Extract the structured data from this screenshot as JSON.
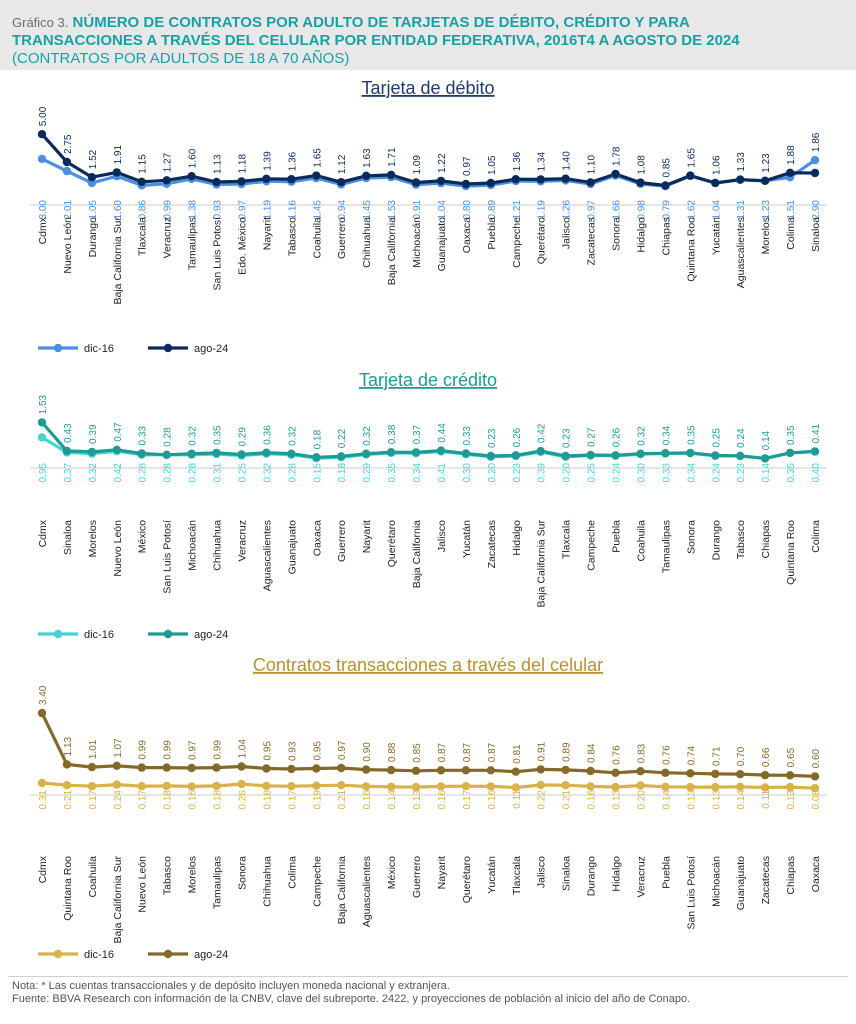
{
  "header": {
    "label": "Gráfico 3.",
    "title_line1": "NÚMERO DE CONTRATOS POR ADULTO DE TARJETAS DE DÉBITO, CRÉDITO Y PARA",
    "title_line2": "TRANSACCIONES A TRAVÉS DEL CELULAR POR ENTIDAD FEDERATIVA, 2016T4 A AGOSTO DE 2024",
    "subtitle": "(CONTRATOS POR ADULTOS DE 18 A 70 AÑOS)"
  },
  "colors": {
    "debito_dic16": "#4a8fe0",
    "debito_ago24": "#0b2a5c",
    "credito_dic16": "#45d4cf",
    "credito_ago24": "#1f9a94",
    "celular_dic16": "#d8b24a",
    "celular_ago24": "#85692a",
    "debito_title": "#1f3a6e",
    "credito_title": "#1f9a94",
    "celular_title": "#b8912f"
  },
  "chart_data": [
    {
      "type": "line",
      "title": "Tarjeta de débito",
      "categories": [
        "Cdmx",
        "Nuevo León",
        "Durango",
        "Baja California Sur",
        "Tlaxcala",
        "Veracruz",
        "Tamaulipas",
        "San Luis Potosí",
        "Edo. México",
        "Nayarit",
        "Tabasco",
        "Coahuila",
        "Guerrero",
        "Chihuahua",
        "Baja California",
        "Michoacán",
        "Guanajuato",
        "Oaxaca",
        "Puebla",
        "Campeche",
        "Querétaro",
        "Jalisco",
        "Zacatecas",
        "Sonora",
        "Hidalgo",
        "Chiapas",
        "Quintana Roo",
        "Yucatán",
        "Aguascalientes",
        "Morelos",
        "Colima",
        "Sinaloa"
      ],
      "series": [
        {
          "name": "dic-16",
          "values": [
            3.0,
            2.01,
            1.05,
            1.6,
            0.86,
            0.99,
            1.38,
            0.93,
            0.97,
            1.19,
            1.16,
            1.45,
            0.94,
            1.45,
            1.53,
            0.91,
            1.04,
            0.8,
            0.89,
            1.21,
            1.19,
            1.26,
            0.97,
            1.66,
            0.98,
            0.79,
            1.62,
            1.04,
            1.31,
            1.23,
            1.51,
            2.9
          ]
        },
        {
          "name": "ago-24",
          "values": [
            5.0,
            2.75,
            1.52,
            1.91,
            1.15,
            1.27,
            1.6,
            1.13,
            1.18,
            1.39,
            1.36,
            1.65,
            1.12,
            1.63,
            1.71,
            1.09,
            1.22,
            0.97,
            1.05,
            1.36,
            1.34,
            1.4,
            1.1,
            1.78,
            1.08,
            0.85,
            1.65,
            1.06,
            1.33,
            1.23,
            1.88,
            1.86
          ]
        }
      ],
      "ylim": [
        0,
        5.5
      ],
      "legend": [
        "dic-16",
        "ago-24"
      ]
    },
    {
      "type": "line",
      "title": "Tarjeta de crédito",
      "categories": [
        "Cdmx",
        "Sinaloa",
        "Morelos",
        "Nuevo León",
        "México",
        "San Luis Potosí",
        "Michoacán",
        "Chihuahua",
        "Veracruz",
        "Aguascalientes",
        "Guanajuato",
        "Oaxaca",
        "Guerrero",
        "Nayarit",
        "Querétaro",
        "Baja California",
        "Jalisco",
        "Yucatán",
        "Zacatecas",
        "Hidalgo",
        "Baja California Sur",
        "Tlaxcala",
        "Campeche",
        "Puebla",
        "Coahuila",
        "Tamaulipas",
        "Sonora",
        "Durango",
        "Tabasco",
        "Chiapas",
        "Quintana Roo",
        "Colima"
      ],
      "series": [
        {
          "name": "dic-16",
          "values": [
            0.95,
            0.37,
            0.32,
            0.42,
            0.28,
            0.28,
            0.28,
            0.31,
            0.25,
            0.32,
            0.28,
            0.15,
            0.18,
            0.29,
            0.35,
            0.34,
            0.41,
            0.3,
            0.2,
            0.23,
            0.39,
            0.2,
            0.25,
            0.24,
            0.3,
            0.33,
            0.34,
            0.24,
            0.23,
            0.14,
            0.35,
            0.4
          ]
        },
        {
          "name": "ago-24",
          "values": [
            1.53,
            0.43,
            0.39,
            0.47,
            0.33,
            0.28,
            0.32,
            0.35,
            0.29,
            0.36,
            0.32,
            0.18,
            0.22,
            0.32,
            0.38,
            0.37,
            0.44,
            0.33,
            0.23,
            0.26,
            0.42,
            0.23,
            0.27,
            0.26,
            0.32,
            0.34,
            0.35,
            0.25,
            0.24,
            0.14,
            0.35,
            0.41
          ]
        }
      ],
      "ylim": [
        0,
        1.7
      ],
      "legend": [
        "dic-16",
        "ago-24"
      ]
    },
    {
      "type": "line",
      "title": "Contratos transacciones a través del celular",
      "categories": [
        "Cdmx",
        "Quintana Roo",
        "Coahuila",
        "Baja California Sur",
        "Nuevo León",
        "Tabasco",
        "Morelos",
        "Tamaulipas",
        "Sonora",
        "Chihuahua",
        "Colima",
        "Campeche",
        "Baja California",
        "Aguascalientes",
        "México",
        "Guerrero",
        "Nayarit",
        "Querétaro",
        "Yucatán",
        "Tlaxcala",
        "Jalisco",
        "Sinaloa",
        "Durango",
        "Hidalgo",
        "Veracruz",
        "Puebla",
        "San Luis Potosí",
        "Michoacán",
        "Guanajuato",
        "Zacatecas",
        "Chiapas",
        "Oaxaca"
      ],
      "series": [
        {
          "name": "dic-16",
          "values": [
            0.31,
            0.21,
            0.17,
            0.24,
            0.17,
            0.18,
            0.16,
            0.18,
            0.26,
            0.18,
            0.17,
            0.19,
            0.21,
            0.16,
            0.14,
            0.13,
            0.16,
            0.17,
            0.16,
            0.11,
            0.22,
            0.21,
            0.16,
            0.13,
            0.2,
            0.14,
            0.13,
            0.13,
            0.14,
            0.11,
            0.13,
            0.08
          ]
        },
        {
          "name": "ago-24",
          "values": [
            3.4,
            1.13,
            1.01,
            1.07,
            0.99,
            0.99,
            0.97,
            0.99,
            1.04,
            0.95,
            0.93,
            0.95,
            0.97,
            0.9,
            0.88,
            0.85,
            0.87,
            0.87,
            0.87,
            0.81,
            0.91,
            0.89,
            0.84,
            0.76,
            0.83,
            0.76,
            0.74,
            0.71,
            0.7,
            0.66,
            0.65,
            0.6
          ]
        }
      ],
      "ylim": [
        0,
        3.8
      ],
      "legend": [
        "dic-16",
        "ago-24"
      ]
    }
  ],
  "footer": {
    "note": "Nota: * Las cuentas transaccionales y de depósito incluyen moneda nacional y extranjera.",
    "source": "Fuente: BBVA Research con información de la CNBV, clave del subreporte. 2422, y proyecciones de población al inicio del año de Conapo."
  }
}
